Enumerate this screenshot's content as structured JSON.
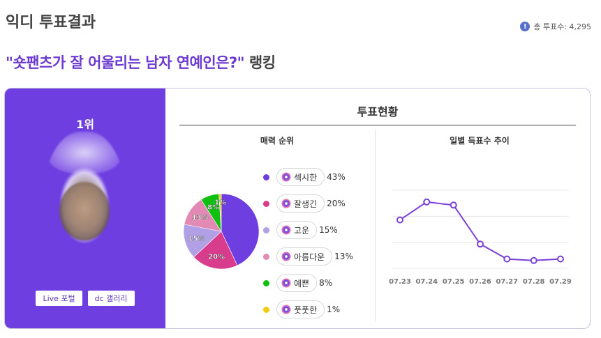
{
  "header": {
    "title": "익디 투표결과",
    "vote_total": "총 투표수: 4,295",
    "info_icon": "exclamation-info-icon"
  },
  "ranking": {
    "question": "\"숏팬츠가 잘 어울리는 남자 연예인은?\"",
    "suffix": " 랭킹"
  },
  "winner": {
    "rank": "1위",
    "buttons": [
      "Live 포털",
      "dc 갤러리"
    ]
  },
  "status": {
    "title": "투표현황",
    "rank_title": "매력 순위",
    "trend_title": "일별 득표수 추이"
  },
  "legend": [
    {
      "label": "섹시한",
      "pct": "43%",
      "color": "#6e3ee0"
    },
    {
      "label": "잘생긴",
      "pct": "20%",
      "color": "#d83c8c"
    },
    {
      "label": "고운",
      "pct": "15%",
      "color": "#b1a0e6"
    },
    {
      "label": "아름다운",
      "pct": "13%",
      "color": "#e28ab4"
    },
    {
      "label": "예쁜",
      "pct": "8%",
      "color": "#10c010"
    },
    {
      "label": "풋풋한",
      "pct": "1%",
      "color": "#f2cc10"
    }
  ],
  "chart_data": [
    {
      "type": "pie",
      "title": "매력 순위",
      "categories": [
        "섹시한",
        "잘생긴",
        "고운",
        "아름다운",
        "예쁜",
        "풋풋한"
      ],
      "values": [
        43,
        20,
        15,
        13,
        8,
        1
      ],
      "slice_labels": [
        "",
        "20%",
        "15%",
        "13%",
        "8%",
        "1%"
      ],
      "colors": [
        "#6e3ee0",
        "#d83c8c",
        "#b1a0e6",
        "#e28ab4",
        "#10c010",
        "#f2cc10"
      ]
    },
    {
      "type": "line",
      "title": "일별 득표수 추이",
      "categories": [
        "07.23",
        "07.24",
        "07.25",
        "07.26",
        "07.27",
        "07.28",
        "07.29"
      ],
      "values": [
        0.62,
        0.85,
        0.81,
        0.31,
        0.12,
        0.1,
        0.12
      ],
      "value_unit": "fraction of y-axis range (unlabeled axis)",
      "grid": true,
      "color": "#7a3fd8"
    }
  ]
}
